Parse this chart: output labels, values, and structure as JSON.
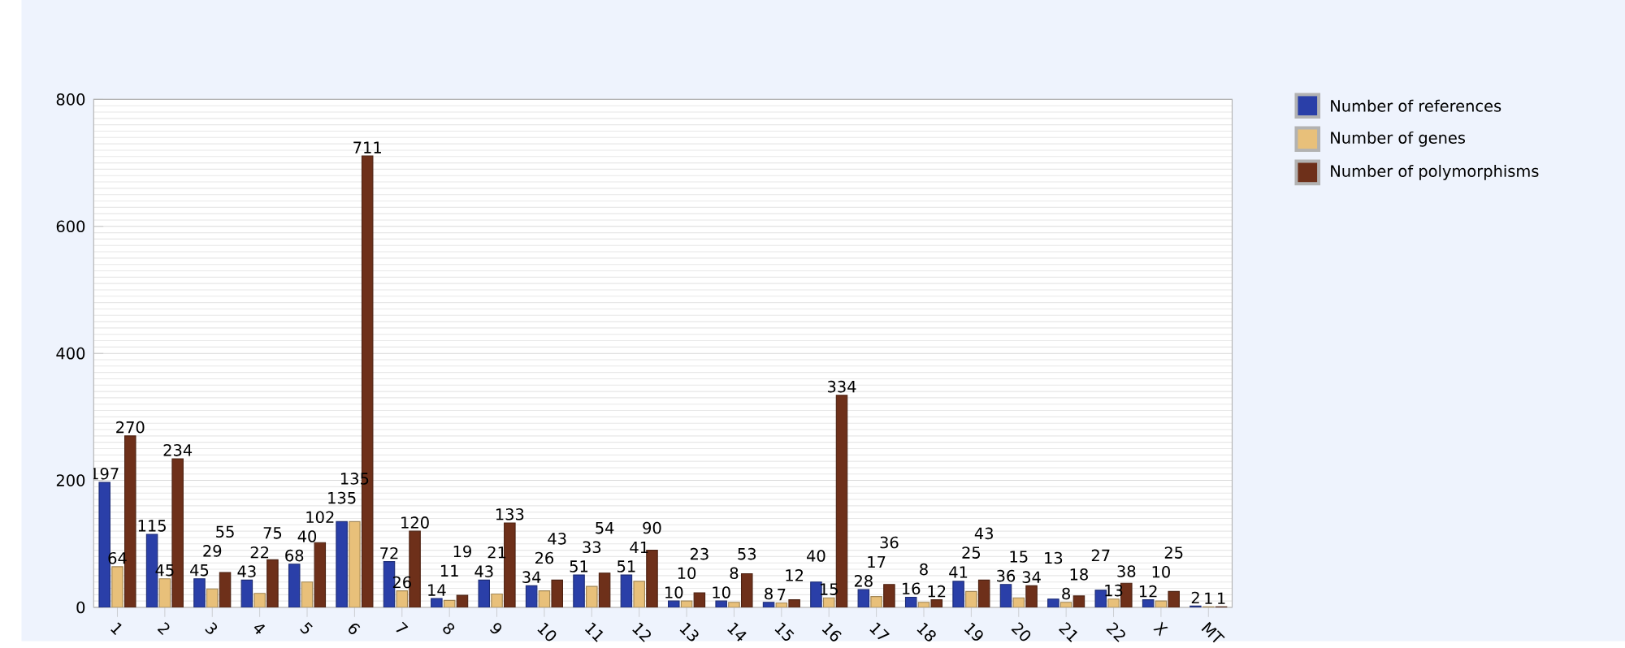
{
  "chart_data": {
    "type": "bar",
    "categories": [
      "1",
      "2",
      "3",
      "4",
      "5",
      "6",
      "7",
      "8",
      "9",
      "10",
      "11",
      "12",
      "13",
      "14",
      "15",
      "16",
      "17",
      "18",
      "19",
      "20",
      "21",
      "22",
      "X",
      "MT"
    ],
    "series": [
      {
        "name": "Number of references",
        "color": "#2a3fa8",
        "values": [
          197,
          115,
          45,
          43,
          68,
          135,
          72,
          14,
          43,
          34,
          51,
          51,
          10,
          10,
          8,
          40,
          28,
          16,
          41,
          36,
          13,
          27,
          12,
          2
        ]
      },
      {
        "name": "Number of genes",
        "color": "#e8c07a",
        "values": [
          64,
          45,
          29,
          22,
          40,
          135,
          26,
          11,
          21,
          26,
          33,
          41,
          10,
          8,
          7,
          15,
          17,
          8,
          25,
          15,
          8,
          13,
          10,
          1
        ]
      },
      {
        "name": "Number of polymorphisms",
        "color": "#6e301a",
        "values": [
          270,
          234,
          55,
          75,
          102,
          711,
          120,
          19,
          133,
          43,
          54,
          90,
          23,
          53,
          12,
          334,
          36,
          12,
          43,
          34,
          18,
          38,
          25,
          1
        ]
      }
    ],
    "ylim": [
      0,
      800
    ],
    "yticks": [
      0,
      200,
      400,
      600,
      800
    ],
    "grid": "y",
    "legend": "top right",
    "data_labels": true
  }
}
